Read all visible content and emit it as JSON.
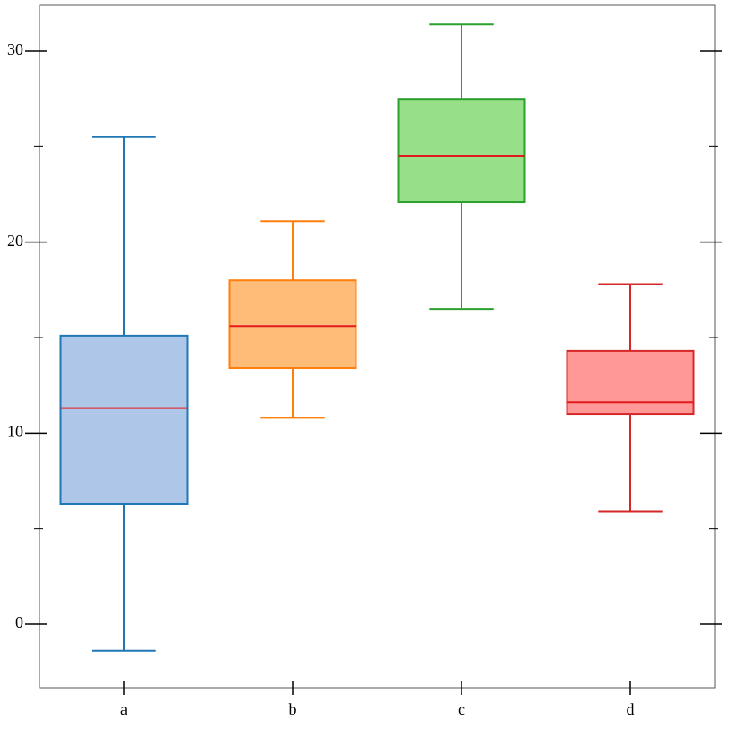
{
  "chart_data": {
    "type": "box",
    "categories": [
      "a",
      "b",
      "c",
      "d"
    ],
    "boxes": [
      {
        "whislo": -1.4,
        "q1": 6.3,
        "median": 11.3,
        "q3": 15.1,
        "whishi": 25.5,
        "color": "#1f77b4",
        "fill": "#aec7e8"
      },
      {
        "whislo": 10.8,
        "q1": 13.4,
        "median": 15.6,
        "q3": 18.0,
        "whishi": 21.1,
        "color": "#ff7f0e",
        "fill": "#ffbb78"
      },
      {
        "whislo": 16.5,
        "q1": 22.1,
        "median": 24.5,
        "q3": 27.5,
        "whishi": 31.4,
        "color": "#2ca02c",
        "fill": "#98df8a"
      },
      {
        "whislo": 5.9,
        "q1": 11.0,
        "median": 11.6,
        "q3": 14.3,
        "whishi": 17.8,
        "color": "#d62728",
        "fill": "#ff9896"
      }
    ],
    "median_color": "#e31a1c",
    "ylim": [
      -3.34,
      32.4
    ],
    "yticks": [
      0,
      10,
      20,
      30
    ],
    "yminor_ticks": [
      5,
      15,
      25
    ]
  }
}
